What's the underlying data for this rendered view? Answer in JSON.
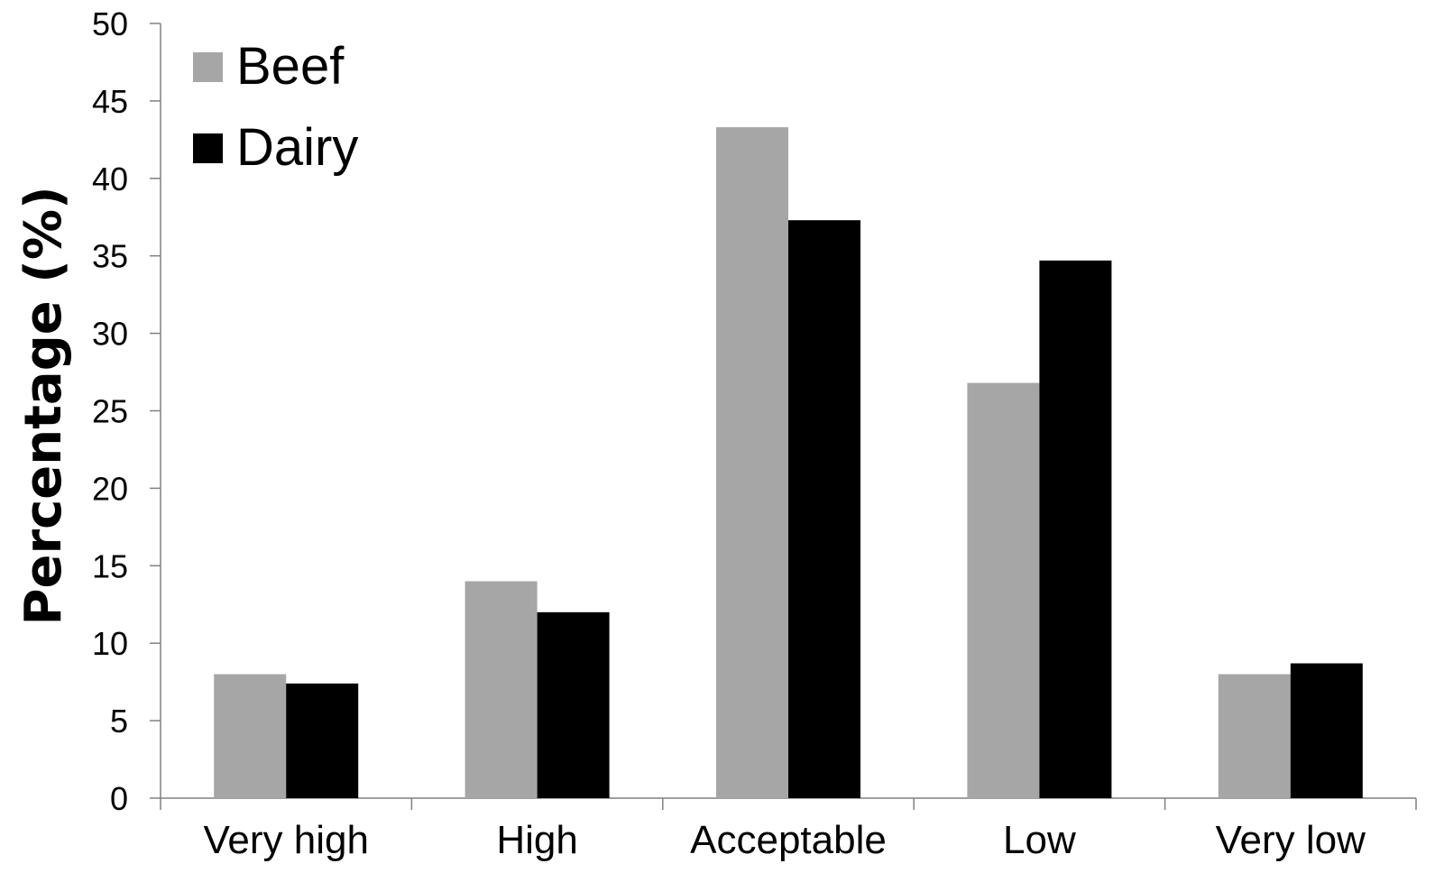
{
  "chart_data": {
    "type": "bar",
    "title": "",
    "xlabel": "",
    "ylabel": "Percentage (%)",
    "ylim": [
      0,
      50
    ],
    "yticks": [
      0,
      5,
      10,
      15,
      20,
      25,
      30,
      35,
      40,
      45,
      50
    ],
    "categories": [
      "Very high",
      "High",
      "Acceptable",
      "Low",
      "Very low"
    ],
    "series": [
      {
        "name": "Beef",
        "color": "#a6a6a6",
        "values": [
          8.0,
          14.0,
          43.3,
          26.8,
          8.0
        ]
      },
      {
        "name": "Dairy",
        "color": "#000000",
        "values": [
          7.4,
          12.0,
          37.3,
          34.7,
          8.7
        ]
      }
    ],
    "grid": false,
    "legend_position": "top-left"
  }
}
